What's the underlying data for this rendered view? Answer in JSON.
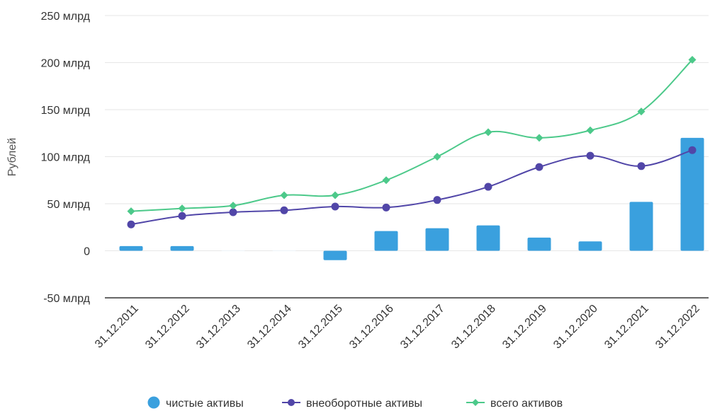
{
  "chart_data": {
    "type": "bar",
    "title": "",
    "xlabel": "",
    "ylabel": "Рублей",
    "ylim": [
      -50,
      250
    ],
    "yticks": [
      {
        "value": 250,
        "label": "250 млрд"
      },
      {
        "value": 200,
        "label": "200 млрд"
      },
      {
        "value": 150,
        "label": "150 млрд"
      },
      {
        "value": 100,
        "label": "100 млрд"
      },
      {
        "value": 50,
        "label": "50 млрд"
      },
      {
        "value": 0,
        "label": "0"
      },
      {
        "value": -50,
        "label": "-50 млрд"
      }
    ],
    "categories": [
      "31.12.2011",
      "31.12.2012",
      "31.12.2013",
      "31.12.2014",
      "31.12.2015",
      "31.12.2016",
      "31.12.2017",
      "31.12.2018",
      "31.12.2019",
      "31.12.2020",
      "31.12.2021",
      "31.12.2022"
    ],
    "grid": true,
    "legend_position": "bottom",
    "series": [
      {
        "name": "чистые активы",
        "type": "bar",
        "color": "#3aa0de",
        "values": [
          5,
          5,
          0.5,
          0.5,
          -10,
          21,
          24,
          27,
          14,
          10,
          52,
          120
        ]
      },
      {
        "name": "внеоборотные активы",
        "type": "line",
        "color": "#5146a8",
        "marker": "circle",
        "values": [
          28,
          37,
          41,
          43,
          47,
          46,
          54,
          68,
          89,
          101,
          90,
          107
        ]
      },
      {
        "name": "всего активов",
        "type": "line",
        "color": "#4cc98a",
        "marker": "diamond",
        "values": [
          42,
          45,
          48,
          59,
          59,
          75,
          100,
          126,
          120,
          128,
          148,
          203
        ]
      }
    ]
  }
}
